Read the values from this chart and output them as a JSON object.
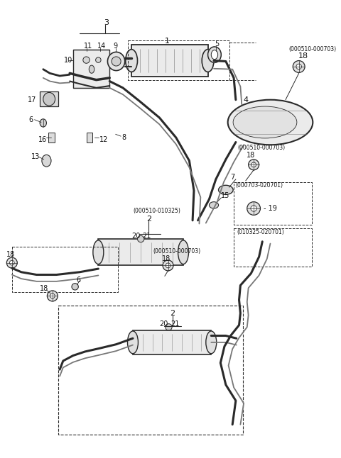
{
  "bg_color": "#ffffff",
  "line_color": "#2a2a2a",
  "text_color": "#111111",
  "fig_width": 4.8,
  "fig_height": 6.46,
  "dpi": 100
}
